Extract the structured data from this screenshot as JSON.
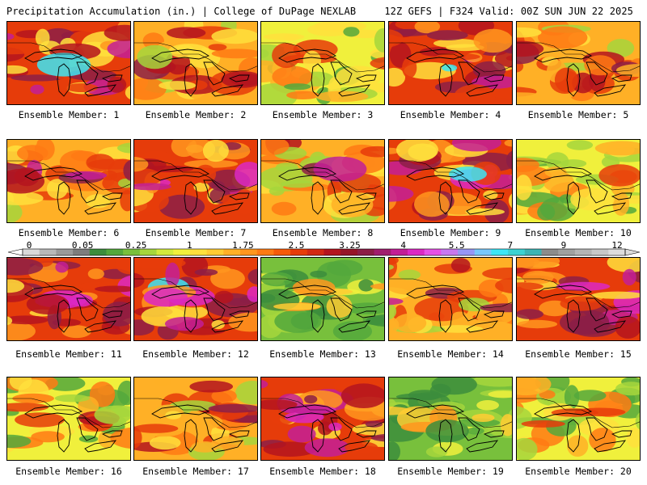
{
  "header": {
    "title": "Precipitation Accumulation (in.) | College of DuPage NEXLAB",
    "run_info": "12Z GEFS | F324 Valid: 00Z SUN JUN 22 2025"
  },
  "legend": {
    "tick_labels": [
      "0",
      "0.05",
      "0.25",
      "1",
      "1.75",
      "2.5",
      "3.25",
      "4",
      "5.5",
      "7",
      "9",
      "12"
    ],
    "colors": [
      "#d9d9d9",
      "#b8b8b8",
      "#9a9a9a",
      "#7d7d7d",
      "#3c8d3c",
      "#53a83c",
      "#78c03c",
      "#a6d63c",
      "#d2ea3c",
      "#f0f03c",
      "#ffe03c",
      "#ffcc33",
      "#ffb026",
      "#ff961e",
      "#ff7a14",
      "#f55a0a",
      "#e63c0a",
      "#d22814",
      "#b4141e",
      "#961428",
      "#8c1e46",
      "#a01e6e",
      "#c31e96",
      "#dc28c3",
      "#e650e6",
      "#c878f0",
      "#9696f5",
      "#78c8fa",
      "#3ce6f5",
      "#3cd2d2",
      "#3cb4b4",
      "#8c8c8c",
      "#a0a0a0",
      "#b4b4b4",
      "#c8c8c8",
      "#dcdcdc"
    ]
  },
  "members": [
    {
      "label": "Ensemble Member: 1",
      "wet": "very-wet"
    },
    {
      "label": "Ensemble Member: 2",
      "wet": "wet"
    },
    {
      "label": "Ensemble Member: 3",
      "wet": "moderate"
    },
    {
      "label": "Ensemble Member: 4",
      "wet": "very-wet"
    },
    {
      "label": "Ensemble Member: 5",
      "wet": "wet"
    },
    {
      "label": "Ensemble Member: 6",
      "wet": "wet"
    },
    {
      "label": "Ensemble Member: 7",
      "wet": "very-wet"
    },
    {
      "label": "Ensemble Member: 8",
      "wet": "wet"
    },
    {
      "label": "Ensemble Member: 9",
      "wet": "very-wet"
    },
    {
      "label": "Ensemble Member: 10",
      "wet": "moderate"
    },
    {
      "label": "Ensemble Member: 11",
      "wet": "very-wet"
    },
    {
      "label": "Ensemble Member: 12",
      "wet": "very-wet"
    },
    {
      "label": "Ensemble Member: 13",
      "wet": "dry"
    },
    {
      "label": "Ensemble Member: 14",
      "wet": "wet"
    },
    {
      "label": "Ensemble Member: 15",
      "wet": "very-wet"
    },
    {
      "label": "Ensemble Member: 16",
      "wet": "moderate"
    },
    {
      "label": "Ensemble Member: 17",
      "wet": "wet"
    },
    {
      "label": "Ensemble Member: 18",
      "wet": "very-wet"
    },
    {
      "label": "Ensemble Member: 19",
      "wet": "dry"
    },
    {
      "label": "Ensemble Member: 20",
      "wet": "moderate"
    }
  ]
}
